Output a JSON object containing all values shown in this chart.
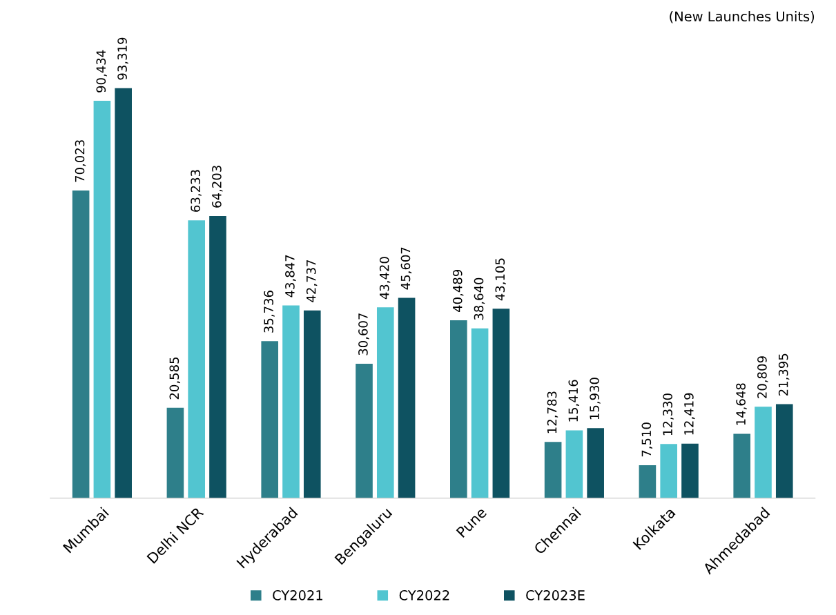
{
  "chart_data": {
    "type": "bar",
    "categories": [
      "Mumbai",
      "Delhi NCR",
      "Hyderabad",
      "Bengaluru",
      "Pune",
      "Chennai",
      "Kolkata",
      "Ahmedabad"
    ],
    "series": [
      {
        "name": "CY2021",
        "color": "#2e7f8a",
        "values": [
          70023,
          20585,
          35736,
          30607,
          40489,
          12783,
          7510,
          14648
        ],
        "value_labels": [
          "70,023",
          "20,585",
          "35,736",
          "30,607",
          "40,489",
          "12,783",
          "7,510",
          "14,648"
        ]
      },
      {
        "name": "CY2022",
        "color": "#52c5d0",
        "values": [
          90434,
          63233,
          43847,
          43420,
          38640,
          15416,
          12330,
          20809
        ],
        "value_labels": [
          "90,434",
          "63,233",
          "43,847",
          "43,420",
          "38,640",
          "15,416",
          "12,330",
          "20,809"
        ]
      },
      {
        "name": "CY2023E",
        "color": "#0e5261",
        "values": [
          93319,
          64203,
          42737,
          45607,
          43105,
          15930,
          12419,
          21395
        ],
        "value_labels": [
          "93,319",
          "64,203",
          "42,737",
          "45,607",
          "43,105",
          "15,930",
          "12,419",
          "21,395"
        ]
      }
    ],
    "legend": "bottom",
    "grid": false,
    "annotations": [
      "(New Launches Units)"
    ]
  }
}
